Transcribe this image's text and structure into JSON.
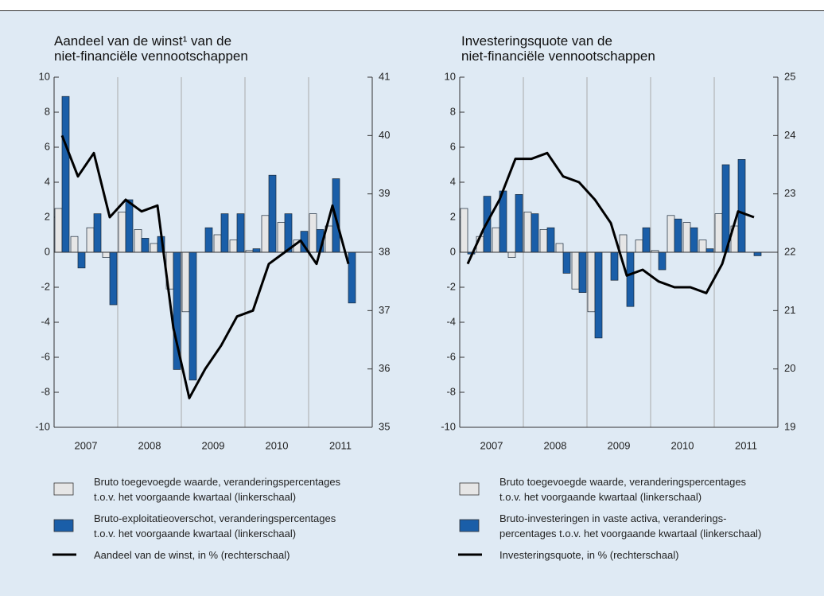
{
  "chart_data": [
    {
      "type": "bar",
      "title": "Aandeel van de winst¹ van de\nniet-financiële vennootschappen",
      "categories": [
        "2007",
        null,
        null,
        null,
        "2008",
        null,
        null,
        null,
        "2009",
        null,
        null,
        null,
        "2010",
        null,
        null,
        null,
        "2011",
        null,
        null
      ],
      "series": [
        {
          "name": "Bruto toegevoegde waarde, veranderingspercentages\nt.o.v. het voorgaande kwartaal (linkerschaal)",
          "color": "#e6e6e6",
          "values": [
            2.5,
            0.9,
            1.4,
            -0.3,
            2.3,
            1.3,
            0.5,
            -2.1,
            -3.4,
            0.0,
            1.0,
            0.7,
            0.1,
            2.1,
            1.7,
            0.7,
            2.2,
            1.5,
            null
          ]
        },
        {
          "name": "Bruto-exploitatieoverschot, veranderingspercentages\nt.o.v. het voorgaande kwartaal (linkerschaal)",
          "color": "#1a5ea8",
          "values": [
            8.9,
            -0.9,
            2.2,
            -3.0,
            3.0,
            0.8,
            0.9,
            -6.7,
            -7.3,
            1.4,
            2.2,
            2.2,
            0.2,
            4.4,
            2.2,
            1.2,
            1.3,
            4.2,
            -2.9
          ]
        },
        {
          "name": "Aandeel van de winst, in % (rechterschaal)",
          "color": "#000000",
          "type": "line",
          "axis": "y2",
          "values": [
            40.0,
            39.3,
            39.7,
            38.6,
            38.9,
            38.7,
            38.8,
            36.7,
            35.5,
            36.0,
            36.4,
            36.9,
            37.0,
            37.8,
            38.0,
            38.2,
            37.8,
            38.8,
            37.8
          ]
        }
      ],
      "ylim": [
        -10,
        10
      ],
      "yticks": [
        -10,
        -8,
        -6,
        -4,
        -2,
        0,
        2,
        4,
        6,
        8,
        10
      ],
      "y2lim": [
        35,
        41
      ],
      "y2ticks": [
        35,
        36,
        37,
        38,
        39,
        40,
        41
      ]
    },
    {
      "type": "bar",
      "title": "Investeringsquote van de\nniet-financiële vennootschappen",
      "categories": [
        "2007",
        null,
        null,
        null,
        "2008",
        null,
        null,
        null,
        "2009",
        null,
        null,
        null,
        "2010",
        null,
        null,
        null,
        "2011",
        null,
        null
      ],
      "series": [
        {
          "name": "Bruto toegevoegde waarde, veranderingspercentages\nt.o.v. het voorgaande kwartaal (linkerschaal)",
          "color": "#e6e6e6",
          "values": [
            2.5,
            0.9,
            1.4,
            -0.3,
            2.3,
            1.3,
            0.5,
            -2.1,
            -3.4,
            0.0,
            1.0,
            0.7,
            0.1,
            2.1,
            1.7,
            0.7,
            2.2,
            1.5,
            null
          ]
        },
        {
          "name": "Bruto-investeringen in vaste activa, veranderings-\npercentages t.o.v. het voorgaande kwartaal (linkerschaal)",
          "color": "#1a5ea8",
          "values": [
            -0.1,
            3.2,
            3.5,
            3.3,
            2.2,
            1.4,
            -1.2,
            -2.3,
            -4.9,
            -1.6,
            -3.1,
            1.4,
            -1.0,
            1.9,
            1.4,
            0.2,
            5.0,
            5.3,
            -0.2
          ]
        },
        {
          "name": "Investeringsquote, in % (rechterschaal)",
          "color": "#000000",
          "type": "line",
          "axis": "y2",
          "values": [
            21.8,
            22.4,
            22.9,
            23.6,
            23.6,
            23.7,
            23.3,
            23.2,
            22.9,
            22.5,
            21.6,
            21.7,
            21.5,
            21.4,
            21.4,
            21.3,
            21.8,
            22.7,
            22.6
          ]
        }
      ],
      "ylim": [
        -10,
        10
      ],
      "yticks": [
        -10,
        -8,
        -6,
        -4,
        -2,
        0,
        2,
        4,
        6,
        8,
        10
      ],
      "y2lim": [
        19,
        25
      ],
      "y2ticks": [
        19,
        20,
        21,
        22,
        23,
        24,
        25
      ]
    }
  ]
}
